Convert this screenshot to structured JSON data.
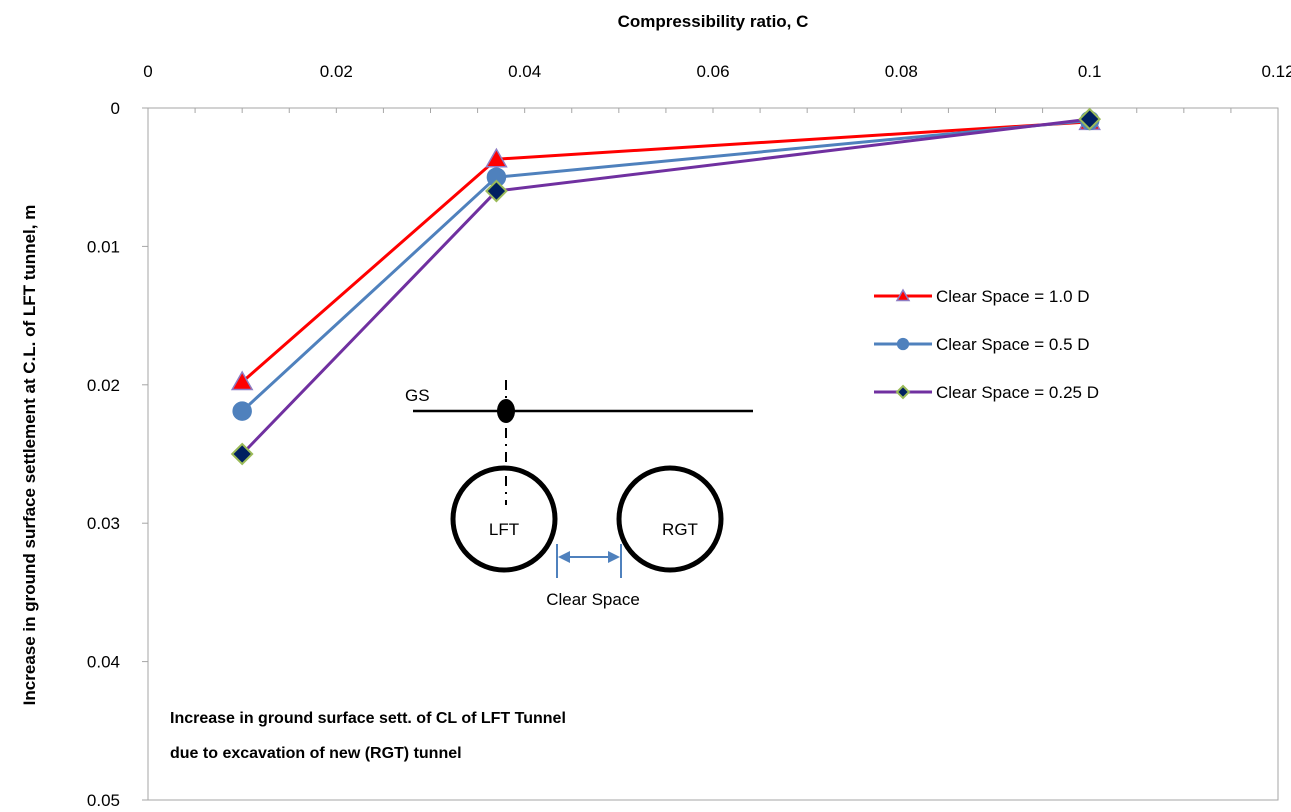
{
  "chart_data": {
    "type": "line",
    "xlabel": "Compressibility ratio, C",
    "ylabel": "Increase in ground surface settlement at C.L. of LFT tunnel, m",
    "xlim": [
      0,
      0.12
    ],
    "ylim": [
      0,
      0.05
    ],
    "y_inverted": true,
    "x_axis_position": "top",
    "grid": false,
    "legend_position": "right",
    "x_ticks": [
      "0",
      "0.02",
      "0.04",
      "0.06",
      "0.08",
      "0.1",
      "0.12"
    ],
    "y_ticks": [
      "0",
      "0.01",
      "0.02",
      "0.03",
      "0.04",
      "0.05"
    ],
    "series": [
      {
        "name": "Clear Space = 1.0 D",
        "color": "#ff0000",
        "marker": "triangle",
        "marker_fill": "#ff0000",
        "marker_stroke": "#8e7cc3",
        "x": [
          0.01,
          0.037,
          0.1
        ],
        "y": [
          0.0198,
          0.0037,
          0.001
        ]
      },
      {
        "name": "Clear Space = 0.5 D",
        "color": "#4f81bd",
        "marker": "circle",
        "marker_fill": "#4f81bd",
        "marker_stroke": "#4f81bd",
        "x": [
          0.01,
          0.037,
          0.1
        ],
        "y": [
          0.0219,
          0.005,
          0.0009
        ]
      },
      {
        "name": "Clear Space = 0.25 D",
        "color": "#7030a0",
        "marker": "diamond",
        "marker_fill": "#002060",
        "marker_stroke": "#9bbb59",
        "x": [
          0.01,
          0.037,
          0.1
        ],
        "y": [
          0.025,
          0.006,
          0.0008
        ]
      }
    ],
    "annotations": {
      "note_line1": "Increase in ground surface sett. of CL of LFT Tunnel",
      "note_line2": "due to excavation of new (RGT) tunnel",
      "inset": {
        "ground_label": "GS",
        "left_tunnel": "LFT",
        "right_tunnel": "RGT",
        "spacing_label": "Clear Space",
        "arrow_color": "#4f81bd"
      }
    }
  }
}
